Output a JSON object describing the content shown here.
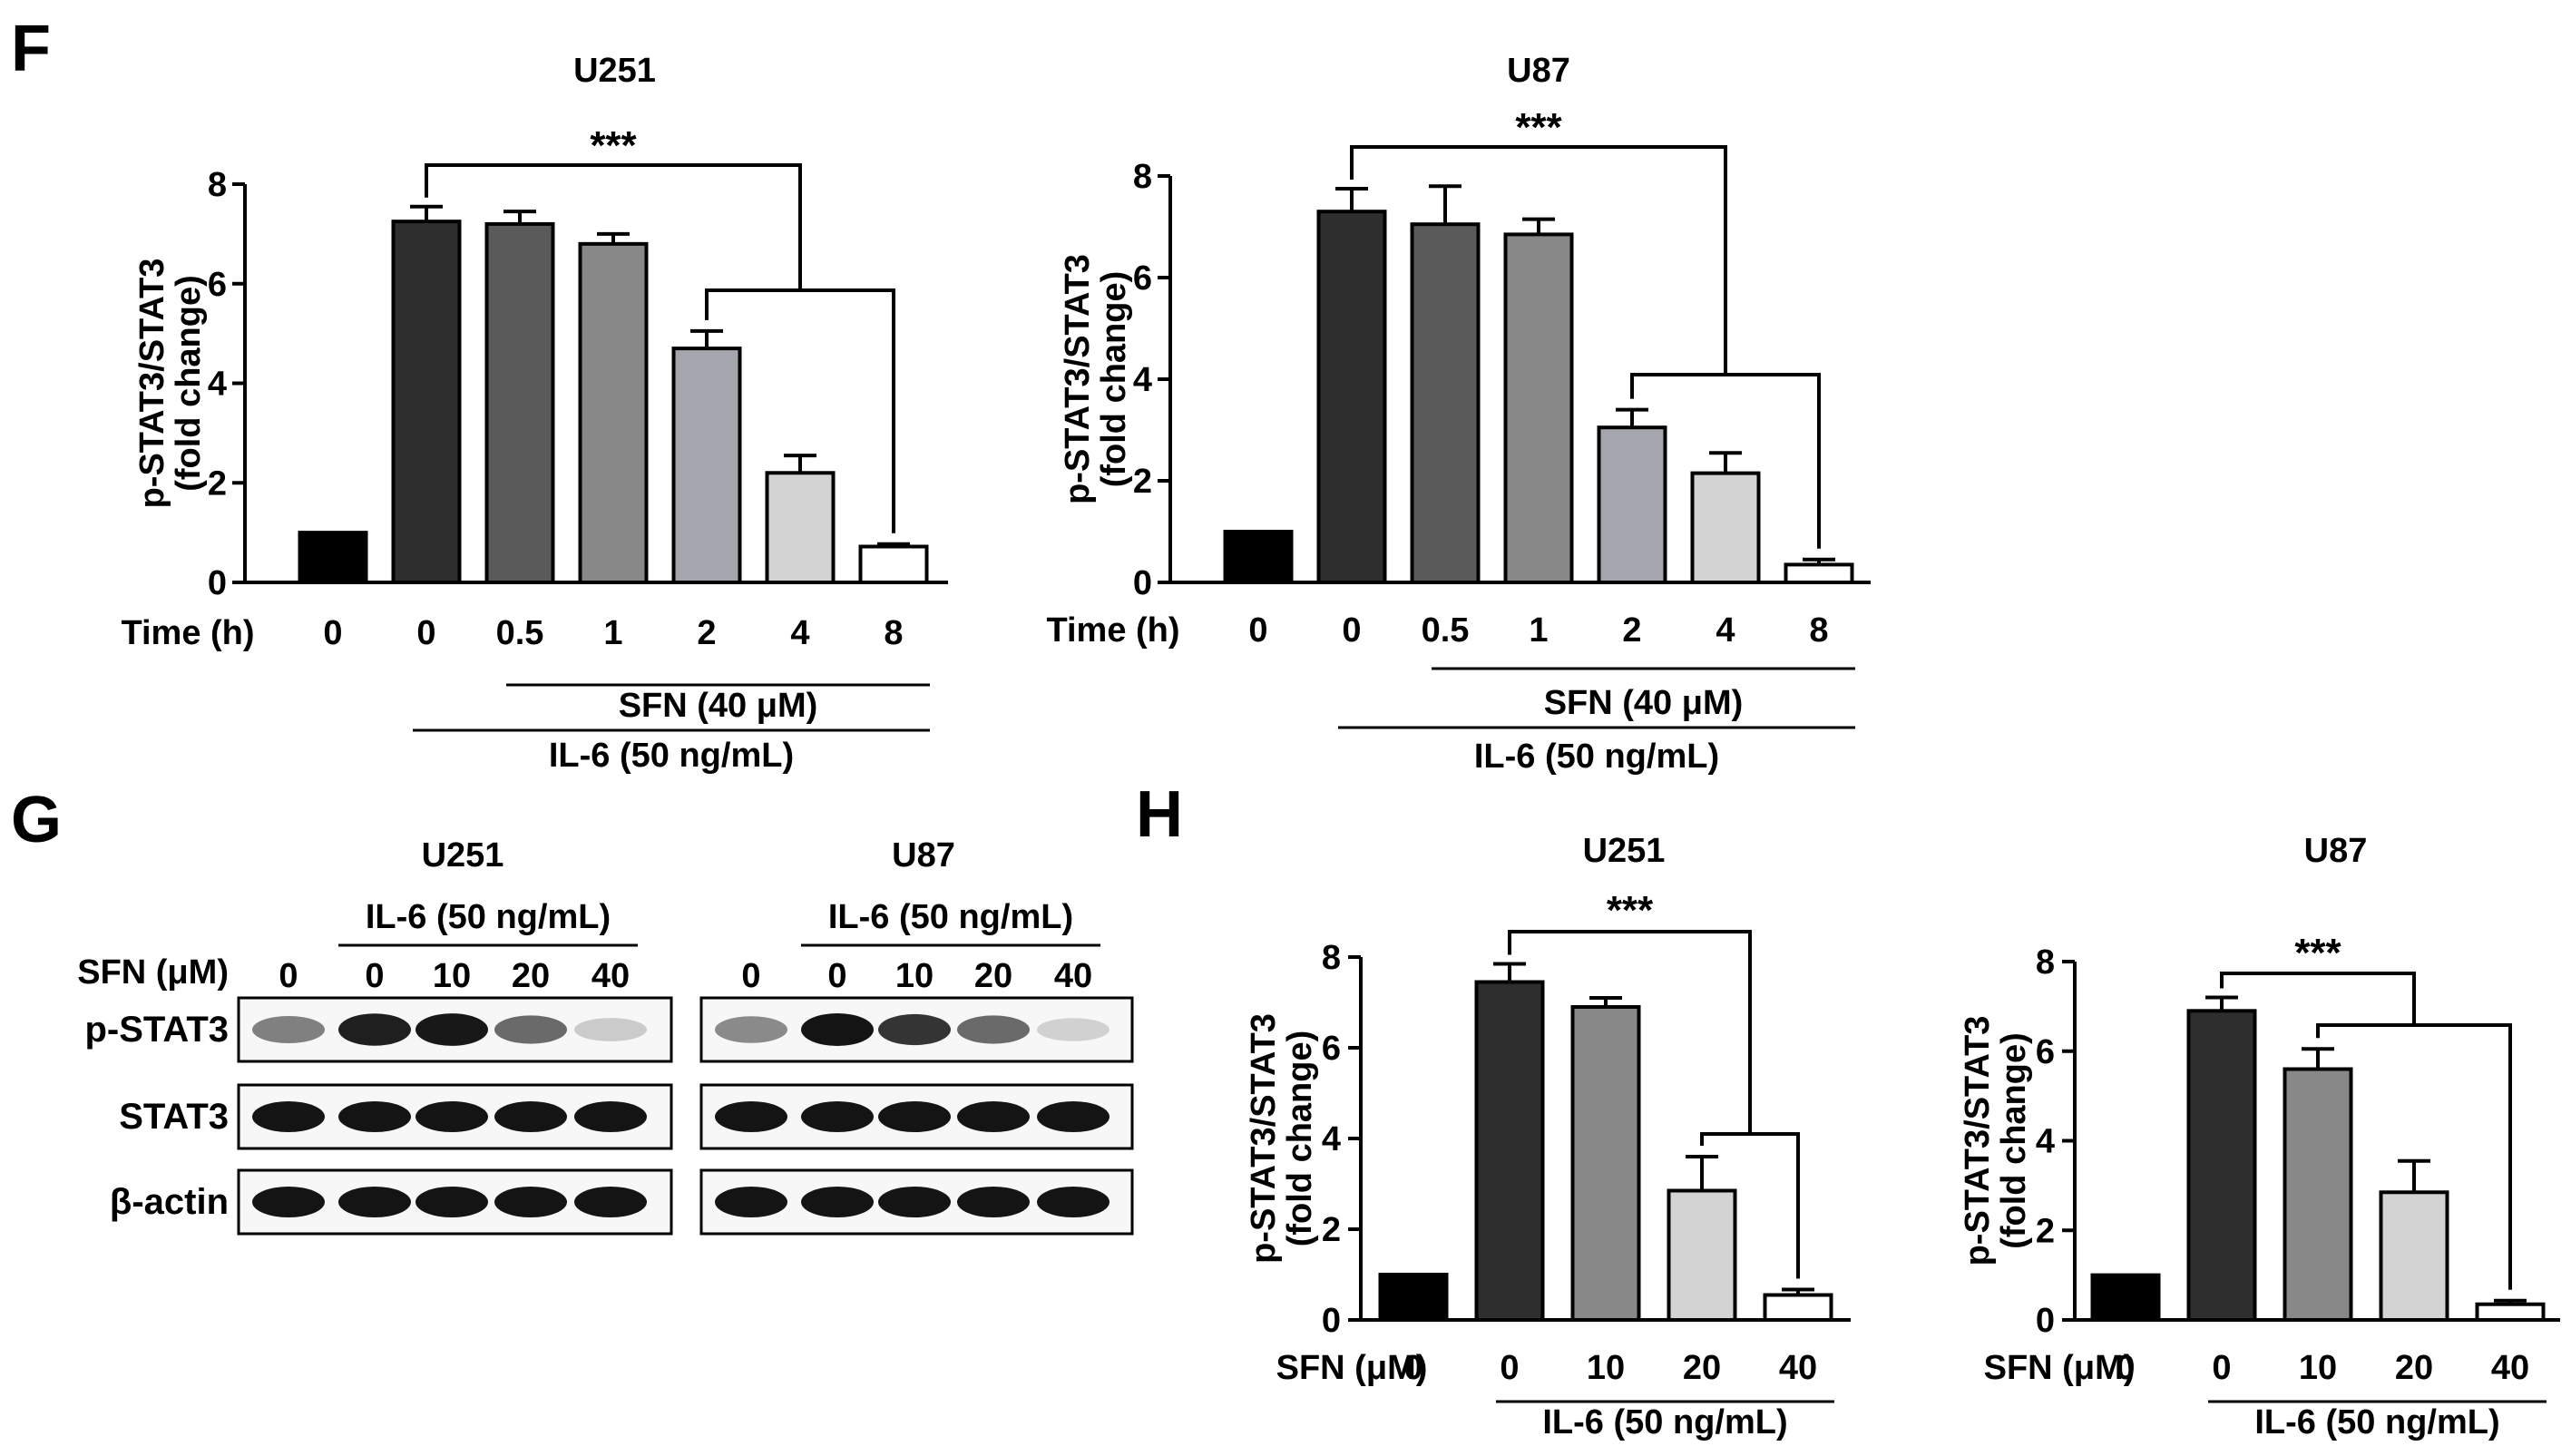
{
  "panels": {
    "F": "F",
    "G": "G",
    "H": "H"
  },
  "chart_data": [
    {
      "id": "F-U251",
      "type": "bar",
      "title": "U251",
      "ylabel": [
        "p-STAT3/STAT3",
        "(fold change)"
      ],
      "ylim": [
        0,
        8
      ],
      "yticks": [
        0,
        2,
        4,
        6,
        8
      ],
      "xlabel_prefix": "Time (h)",
      "categories": [
        "0",
        "0",
        "0.5",
        "1",
        "2",
        "4",
        "8"
      ],
      "values": [
        1.0,
        7.25,
        7.2,
        6.8,
        4.7,
        2.2,
        0.72
      ],
      "errors": [
        0.0,
        0.3,
        0.25,
        0.2,
        0.35,
        0.35,
        0.05
      ],
      "colors": [
        "#000000",
        "#2e2e2e",
        "#5a5a5a",
        "#888888",
        "#a5a5ad",
        "#d3d3d3",
        "#ffffff"
      ],
      "group_lines": [
        {
          "label": "SFN (40 μM)",
          "from": 2,
          "to": 6
        },
        {
          "label": "IL-6 (50 ng/mL)",
          "from": 1,
          "to": 6
        }
      ],
      "significance": "***"
    },
    {
      "id": "F-U87",
      "type": "bar",
      "title": "U87",
      "ylabel": [
        "p-STAT3/STAT3",
        "(fold change)"
      ],
      "ylim": [
        0,
        8
      ],
      "yticks": [
        0,
        2,
        4,
        6,
        8
      ],
      "xlabel_prefix": "Time (h)",
      "categories": [
        "0",
        "0",
        "0.5",
        "1",
        "2",
        "4",
        "8"
      ],
      "values": [
        1.0,
        7.3,
        7.05,
        6.85,
        3.05,
        2.15,
        0.35
      ],
      "errors": [
        0.0,
        0.45,
        0.75,
        0.3,
        0.35,
        0.4,
        0.1
      ],
      "colors": [
        "#000000",
        "#2e2e2e",
        "#5a5a5a",
        "#888888",
        "#a5a5ad",
        "#d3d3d3",
        "#ffffff"
      ],
      "group_lines": [
        {
          "label": "SFN (40 μM)",
          "from": 2,
          "to": 6
        },
        {
          "label": "IL-6 (50 ng/mL)",
          "from": 1,
          "to": 6
        }
      ],
      "significance": "***"
    },
    {
      "id": "H-U251",
      "type": "bar",
      "title": "U251",
      "ylabel": [
        "p-STAT3/STAT3",
        "(fold change)"
      ],
      "ylim": [
        0,
        8
      ],
      "yticks": [
        0,
        2,
        4,
        6,
        8
      ],
      "xlabel_prefix": "SFN (μM)",
      "categories": [
        "0",
        "0",
        "10",
        "20",
        "40"
      ],
      "values": [
        1.0,
        7.45,
        6.9,
        2.85,
        0.55
      ],
      "errors": [
        0.0,
        0.4,
        0.2,
        0.75,
        0.12
      ],
      "colors": [
        "#000000",
        "#2e2e2e",
        "#888888",
        "#d3d3d3",
        "#ffffff"
      ],
      "group_lines": [
        {
          "label": "IL-6 (50 ng/mL)",
          "from": 1,
          "to": 4
        }
      ],
      "significance": "***"
    },
    {
      "id": "H-U87",
      "type": "bar",
      "title": "U87",
      "ylabel": [
        "p-STAT3/STAT3",
        "(fold change)"
      ],
      "ylim": [
        0,
        8
      ],
      "yticks": [
        0,
        2,
        4,
        6,
        8
      ],
      "xlabel_prefix": "SFN (μM)",
      "categories": [
        "0",
        "0",
        "10",
        "20",
        "40"
      ],
      "values": [
        1.0,
        6.9,
        5.6,
        2.85,
        0.35
      ],
      "errors": [
        0.0,
        0.3,
        0.45,
        0.7,
        0.08
      ],
      "colors": [
        "#000000",
        "#2e2e2e",
        "#888888",
        "#d3d3d3",
        "#ffffff"
      ],
      "group_lines": [
        {
          "label": "IL-6 (50 ng/mL)",
          "from": 1,
          "to": 4
        }
      ],
      "significance": "***"
    }
  ],
  "western_blot": {
    "panel_label": "G",
    "treatment_label": "SFN (μM)",
    "il6_label": "IL-6 (50 ng/mL)",
    "rows": [
      "p-STAT3",
      "STAT3",
      "β-actin"
    ],
    "blots": [
      {
        "title": "U251",
        "lanes": [
          "0",
          "0",
          "10",
          "20",
          "40"
        ],
        "intensities": {
          "p-STAT3": [
            0.5,
            0.95,
            0.98,
            0.6,
            0.15
          ],
          "STAT3": [
            1,
            1,
            1,
            1,
            1
          ],
          "β-actin": [
            1,
            1,
            1,
            1,
            1
          ]
        }
      },
      {
        "title": "U87",
        "lanes": [
          "0",
          "0",
          "10",
          "20",
          "40"
        ],
        "intensities": {
          "p-STAT3": [
            0.45,
            1,
            0.85,
            0.6,
            0.12
          ],
          "STAT3": [
            1,
            1,
            1,
            1,
            1
          ],
          "β-actin": [
            1,
            1,
            1,
            1,
            1
          ]
        }
      }
    ]
  }
}
